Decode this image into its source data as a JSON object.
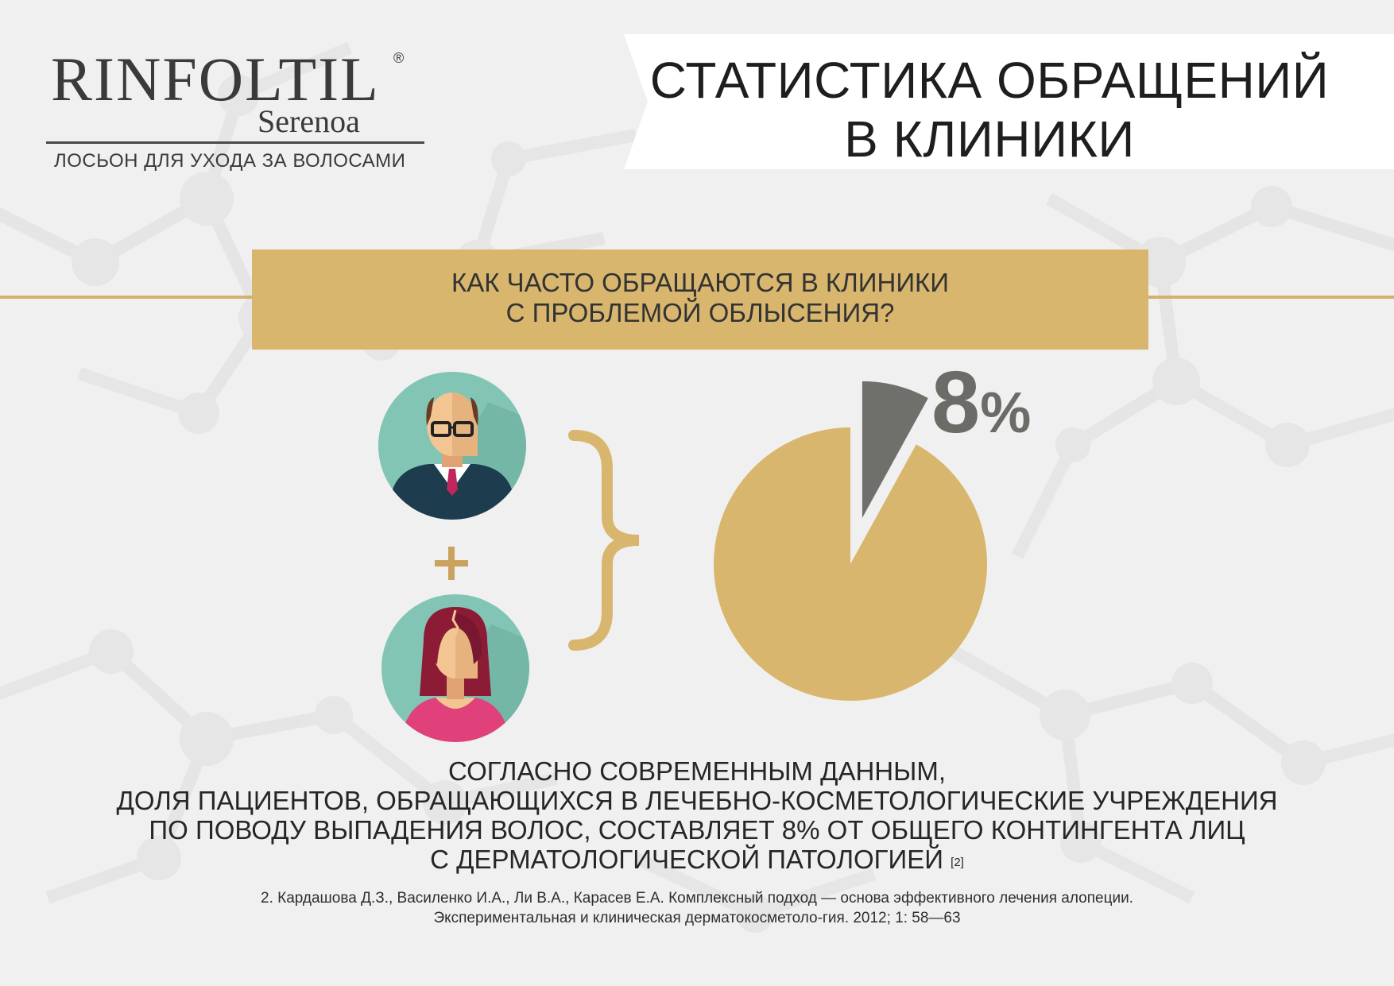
{
  "brand": {
    "name": "RINFOLTIL",
    "registered": "®",
    "sub": "Serenoa",
    "tagline": "ЛОСЬОН ДЛЯ УХОДА ЗА ВОЛОСАМИ"
  },
  "title": {
    "line1": "СТАТИСТИКА ОБРАЩЕНИЙ",
    "line2": "В КЛИНИКИ"
  },
  "question": {
    "line1": "КАК  ЧАСТО ОБРАЩАЮТСЯ В КЛИНИКИ",
    "line2": "С ПРОБЛЕМОЙ ОБЛЫСЕНИЯ?"
  },
  "icons": {
    "man": "bald-man-avatar-icon",
    "plus": "plus-icon",
    "woman": "woman-avatar-icon",
    "brace": "curly-brace-icon"
  },
  "chart_data": {
    "type": "pie",
    "slices": [
      {
        "value": 8,
        "color": "#6f6f6c",
        "exploded": true
      },
      {
        "value": 92,
        "color": "#d8b66e"
      }
    ],
    "label_value": "8",
    "label_unit": "%"
  },
  "conclusion": {
    "line1": "СОГЛАСНО СОВРЕМЕННЫМ ДАННЫМ,",
    "line2": "ДОЛЯ ПАЦИЕНТОВ, ОБРАЩАЮЩИХСЯ В ЛЕЧЕБНО-КОСМЕТОЛОГИЧЕСКИЕ УЧРЕЖДЕНИЯ",
    "line3": "ПО ПОВОДУ ВЫПАДЕНИЯ ВОЛОС, СОСТАВЛЯЕТ 8% ОТ ОБЩЕГО КОНТИНГЕНТА ЛИЦ",
    "line4": "С ДЕРМАТОЛОГИЧЕСКОЙ ПАТОЛОГИЕЙ",
    "footnote": "[2]"
  },
  "reference": {
    "line1": "2. Кардашова Д.З., Василенко И.А., Ли В.А., Карасев Е.А. Комплексный подход — основа эффективного лечения алопеции.",
    "line2": "Экспериментальная и клиническая дерматокосметоло-гия. 2012; 1: 58—63"
  },
  "colors": {
    "gold": "#d8b66e",
    "gray": "#6f6f6c",
    "teal": "#82c5b5"
  }
}
